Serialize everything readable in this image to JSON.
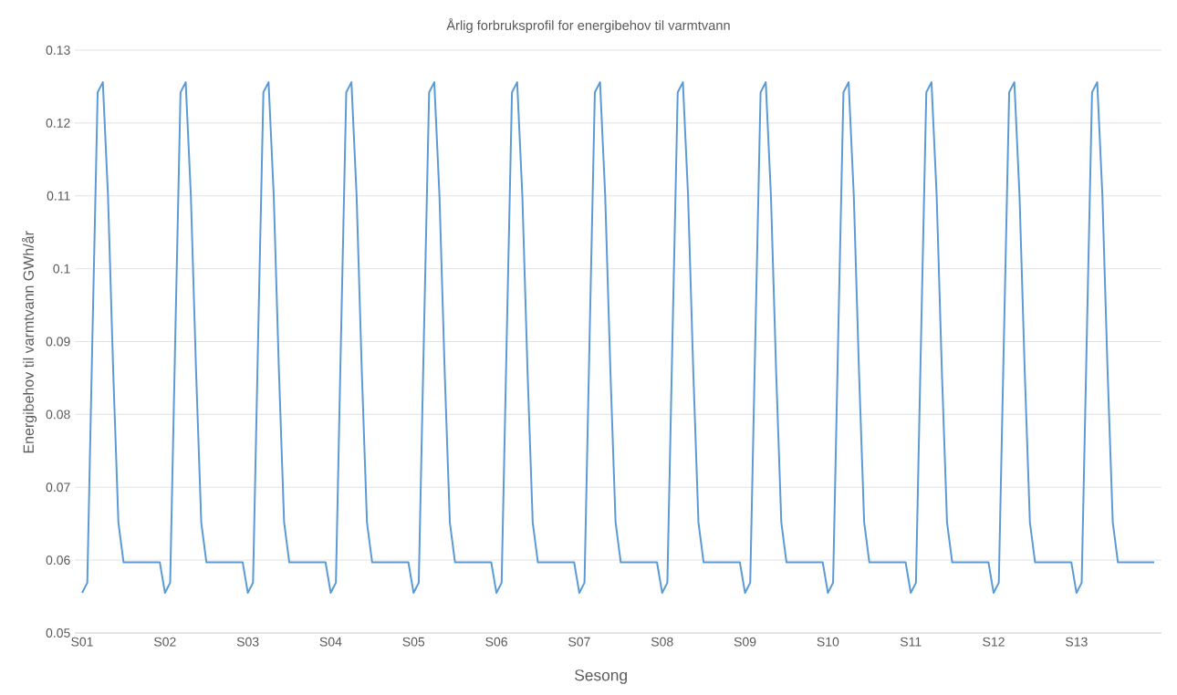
{
  "chart_data": {
    "type": "line",
    "title": "Årlig forbruksprofil for energibehov til varmtvann",
    "xlabel": "Sesong",
    "ylabel": "Energibehov til varmtvann GWh/år",
    "categories": [
      "S01",
      null,
      null,
      null,
      null,
      null,
      null,
      null,
      null,
      null,
      null,
      null,
      null,
      null,
      null,
      null,
      "S02",
      null,
      null,
      null,
      null,
      null,
      null,
      null,
      null,
      null,
      null,
      null,
      null,
      null,
      null,
      null,
      "S03",
      null,
      null,
      null,
      null,
      null,
      null,
      null,
      null,
      null,
      null,
      null,
      null,
      null,
      null,
      null,
      "S04",
      null,
      null,
      null,
      null,
      null,
      null,
      null,
      null,
      null,
      null,
      null,
      null,
      null,
      null,
      null,
      "S05",
      null,
      null,
      null,
      null,
      null,
      null,
      null,
      null,
      null,
      null,
      null,
      null,
      null,
      null,
      null,
      "S06",
      null,
      null,
      null,
      null,
      null,
      null,
      null,
      null,
      null,
      null,
      null,
      null,
      null,
      null,
      null,
      "S07",
      null,
      null,
      null,
      null,
      null,
      null,
      null,
      null,
      null,
      null,
      null,
      null,
      null,
      null,
      null,
      "S08",
      null,
      null,
      null,
      null,
      null,
      null,
      null,
      null,
      null,
      null,
      null,
      null,
      null,
      null,
      null,
      "S09",
      null,
      null,
      null,
      null,
      null,
      null,
      null,
      null,
      null,
      null,
      null,
      null,
      null,
      null,
      null,
      "S10",
      null,
      null,
      null,
      null,
      null,
      null,
      null,
      null,
      null,
      null,
      null,
      null,
      null,
      null,
      null,
      "S11",
      null,
      null,
      null,
      null,
      null,
      null,
      null,
      null,
      null,
      null,
      null,
      null,
      null,
      null,
      null,
      "S12",
      null,
      null,
      null,
      null,
      null,
      null,
      null,
      null,
      null,
      null,
      null,
      null,
      null,
      null,
      null,
      "S13",
      null,
      null,
      null,
      null,
      null,
      null,
      null,
      null,
      null,
      null,
      null,
      null,
      null,
      null,
      null
    ],
    "series": [
      {
        "color": "#5b9bd5",
        "values": [
          0.0555,
          0.0569,
          0.091,
          0.1242,
          0.1256,
          0.11,
          0.086,
          0.0652,
          0.0597,
          0.0597,
          0.0597,
          0.0597,
          0.0597,
          0.0597,
          0.0597,
          0.0597,
          0.0555,
          0.0569,
          0.091,
          0.1242,
          0.1256,
          0.11,
          0.086,
          0.0652,
          0.0597,
          0.0597,
          0.0597,
          0.0597,
          0.0597,
          0.0597,
          0.0597,
          0.0597,
          0.0555,
          0.0569,
          0.091,
          0.1242,
          0.1256,
          0.11,
          0.086,
          0.0652,
          0.0597,
          0.0597,
          0.0597,
          0.0597,
          0.0597,
          0.0597,
          0.0597,
          0.0597,
          0.0555,
          0.0569,
          0.091,
          0.1242,
          0.1256,
          0.11,
          0.086,
          0.0652,
          0.0597,
          0.0597,
          0.0597,
          0.0597,
          0.0597,
          0.0597,
          0.0597,
          0.0597,
          0.0555,
          0.0569,
          0.091,
          0.1242,
          0.1256,
          0.11,
          0.086,
          0.0652,
          0.0597,
          0.0597,
          0.0597,
          0.0597,
          0.0597,
          0.0597,
          0.0597,
          0.0597,
          0.0555,
          0.0569,
          0.091,
          0.1242,
          0.1256,
          0.11,
          0.086,
          0.0652,
          0.0597,
          0.0597,
          0.0597,
          0.0597,
          0.0597,
          0.0597,
          0.0597,
          0.0597,
          0.0555,
          0.0569,
          0.091,
          0.1242,
          0.1256,
          0.11,
          0.086,
          0.0652,
          0.0597,
          0.0597,
          0.0597,
          0.0597,
          0.0597,
          0.0597,
          0.0597,
          0.0597,
          0.0555,
          0.0569,
          0.091,
          0.1242,
          0.1256,
          0.11,
          0.086,
          0.0652,
          0.0597,
          0.0597,
          0.0597,
          0.0597,
          0.0597,
          0.0597,
          0.0597,
          0.0597,
          0.0555,
          0.0569,
          0.091,
          0.1242,
          0.1256,
          0.11,
          0.086,
          0.0652,
          0.0597,
          0.0597,
          0.0597,
          0.0597,
          0.0597,
          0.0597,
          0.0597,
          0.0597,
          0.0555,
          0.0569,
          0.091,
          0.1242,
          0.1256,
          0.11,
          0.086,
          0.0652,
          0.0597,
          0.0597,
          0.0597,
          0.0597,
          0.0597,
          0.0597,
          0.0597,
          0.0597,
          0.0555,
          0.0569,
          0.091,
          0.1242,
          0.1256,
          0.11,
          0.086,
          0.0652,
          0.0597,
          0.0597,
          0.0597,
          0.0597,
          0.0597,
          0.0597,
          0.0597,
          0.0597,
          0.0555,
          0.0569,
          0.091,
          0.1242,
          0.1256,
          0.11,
          0.086,
          0.0652,
          0.0597,
          0.0597,
          0.0597,
          0.0597,
          0.0597,
          0.0597,
          0.0597,
          0.0597,
          0.0555,
          0.0569,
          0.091,
          0.1242,
          0.1256,
          0.11,
          0.086,
          0.0652,
          0.0597,
          0.0597,
          0.0597,
          0.0597,
          0.0597,
          0.0597,
          0.0597,
          0.0597
        ]
      }
    ],
    "ylim": [
      0.05,
      0.13
    ],
    "yticks": [
      0.05,
      0.06,
      0.07,
      0.08,
      0.09,
      0.1,
      0.11,
      0.12,
      0.13
    ],
    "grid": "y"
  }
}
